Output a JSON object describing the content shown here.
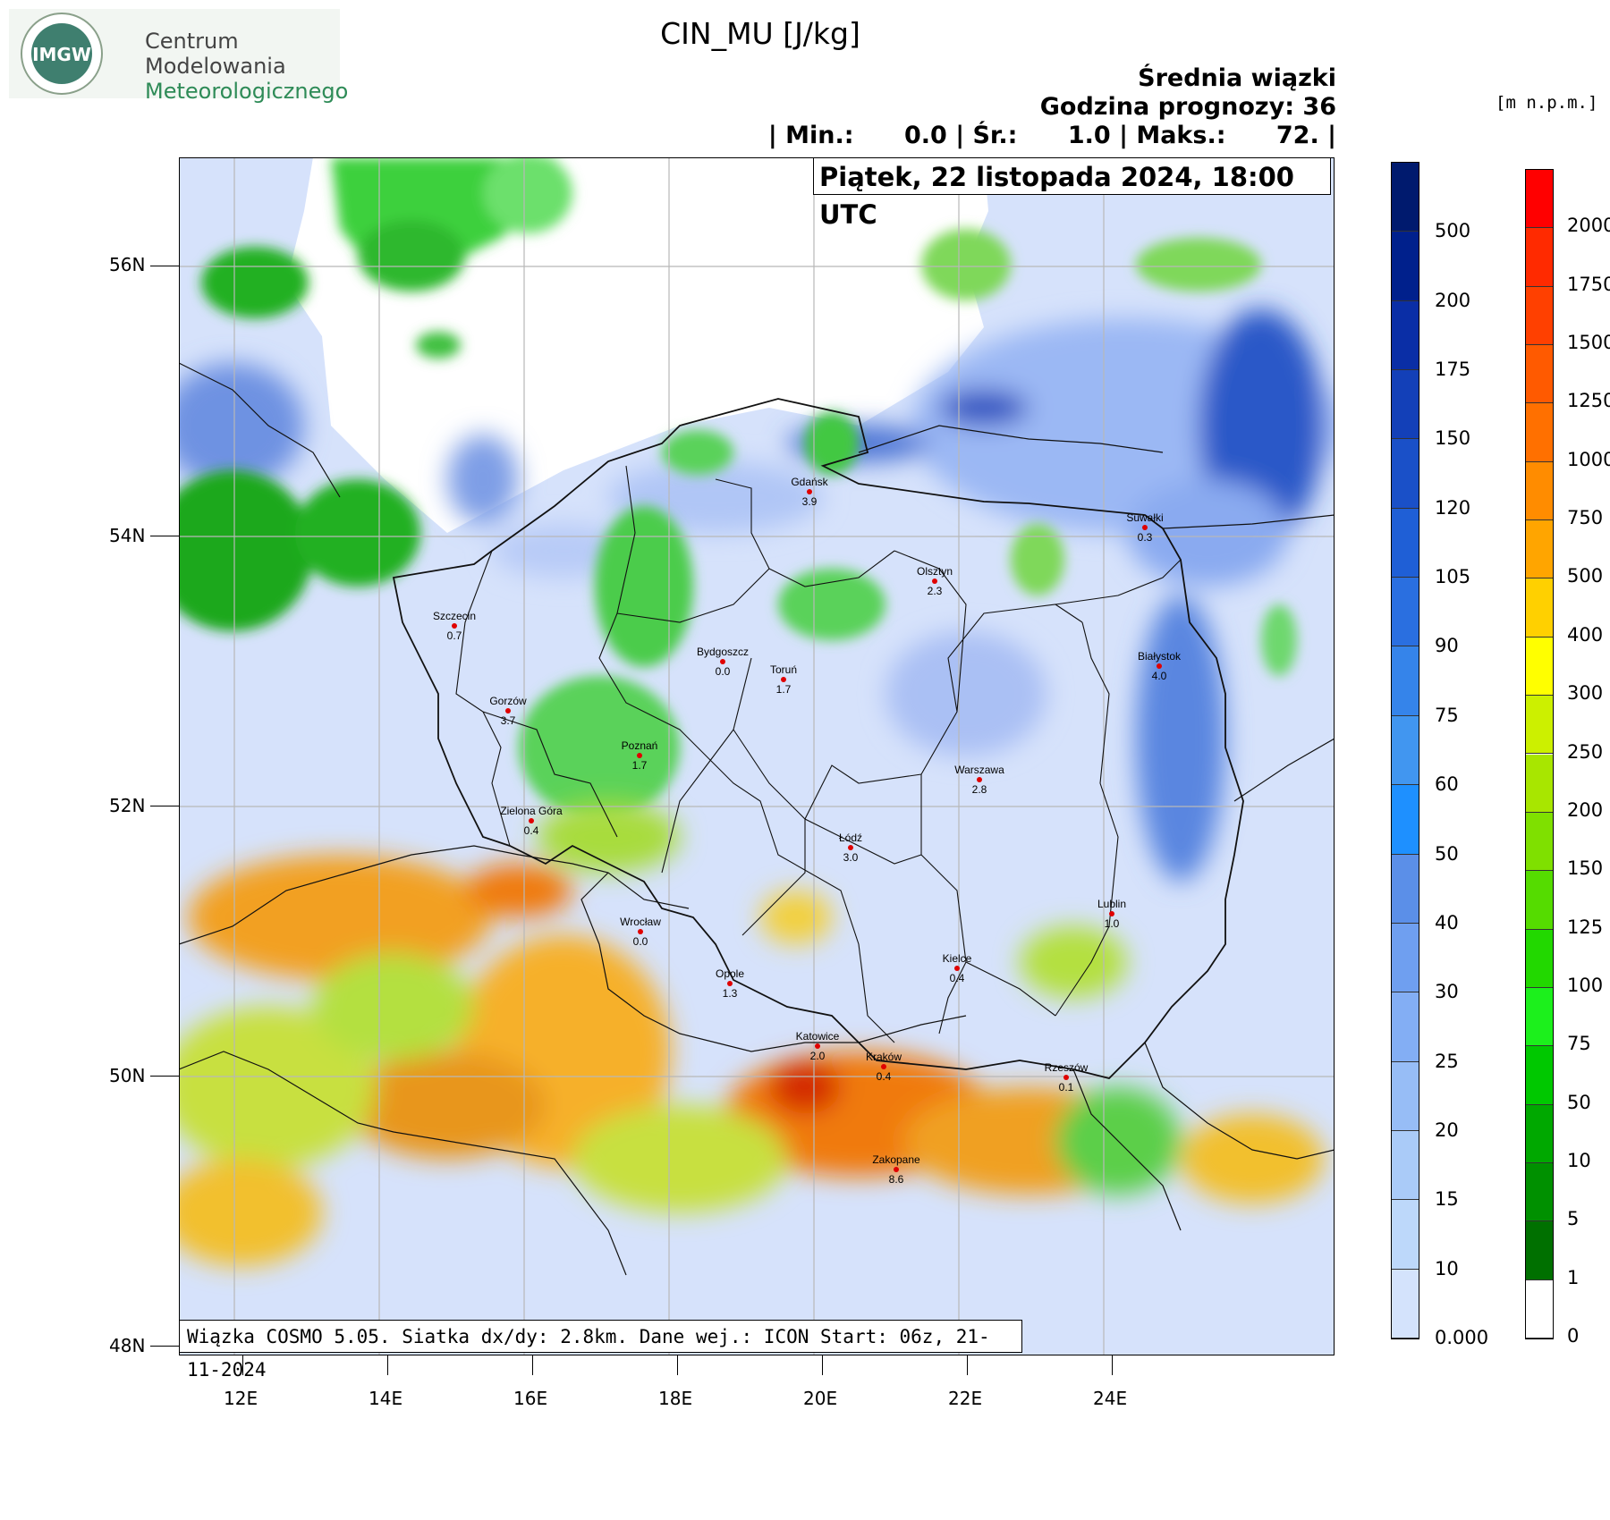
{
  "logo": {
    "badge": "IMGW",
    "line1": "Centrum",
    "line2": "Modelowania",
    "line3": "Meteorologicznego"
  },
  "title": "CIN_MU [J/kg]",
  "header": {
    "line1": "Średnia wiązki",
    "line2": "Godzina prognozy: 36",
    "line3": "| Min.:      0.0 | Śr.:      1.0 | Maks.:      72. |"
  },
  "date": "Piątek, 22 listopada 2024, 18:00 UTC",
  "footer": "Wiązka COSMO 5.05. Siatka dx/dy: 2.8km. Dane wej.: ICON Start: 06z, 21-11-2024",
  "unit_label": "[m n.p.m.]",
  "axes": {
    "lat_labels": [
      "56N",
      "54N",
      "52N",
      "50N",
      "48N"
    ],
    "lon_labels": [
      "12E",
      "14E",
      "16E",
      "18E",
      "20E",
      "22E",
      "24E"
    ]
  },
  "colorbar_cin": {
    "labels": [
      "500",
      "200",
      "175",
      "150",
      "120",
      "105",
      "90",
      "75",
      "60",
      "50",
      "40",
      "30",
      "25",
      "20",
      "15",
      "10",
      "0.000"
    ],
    "colors": [
      "#001a6e",
      "#00208c",
      "#0a2ea6",
      "#1340b8",
      "#1a50c8",
      "#1f5fd6",
      "#2a6fe0",
      "#3584ea",
      "#4196f0",
      "#1e90ff",
      "#5b8fe8",
      "#6f9ff0",
      "#83aef4",
      "#97bdf6",
      "#aacbf8",
      "#bdd8fa",
      "#d4e3fc"
    ]
  },
  "colorbar_elev": {
    "labels": [
      "2000",
      "1750",
      "1500",
      "1250",
      "1000",
      "750",
      "500",
      "400",
      "300",
      "250",
      "200",
      "150",
      "125",
      "100",
      "75",
      "50",
      "10",
      "5",
      "1",
      "0"
    ],
    "colors": [
      "#ff0000",
      "#ff2a00",
      "#ff4000",
      "#ff5a00",
      "#ff7000",
      "#ff8c00",
      "#ffa500",
      "#ffd000",
      "#ffff00",
      "#ccf000",
      "#a8e600",
      "#7fe000",
      "#55dc00",
      "#22d800",
      "#1cf01c",
      "#00c800",
      "#00a800",
      "#009000",
      "#007000",
      "#ffffff"
    ]
  },
  "cities": [
    {
      "name": "Gdańsk",
      "value": "3.9"
    },
    {
      "name": "Suwałki",
      "value": "0.3"
    },
    {
      "name": "Olsztyn",
      "value": "2.3"
    },
    {
      "name": "Szczecin",
      "value": "0.7"
    },
    {
      "name": "Bydgoszcz",
      "value": "0.0"
    },
    {
      "name": "Toruń",
      "value": "1.7"
    },
    {
      "name": "Białystok",
      "value": "4.0"
    },
    {
      "name": "Gorzów",
      "value": "3.7"
    },
    {
      "name": "Poznań",
      "value": "1.7"
    },
    {
      "name": "Warszawa",
      "value": "2.8"
    },
    {
      "name": "Zielona Góra",
      "value": "0.4"
    },
    {
      "name": "Łódź",
      "value": "3.0"
    },
    {
      "name": "Lublin",
      "value": "1.0"
    },
    {
      "name": "Wrocław",
      "value": "0.0"
    },
    {
      "name": "Kielce",
      "value": "0.4"
    },
    {
      "name": "Opole",
      "value": "1.3"
    },
    {
      "name": "Katowice",
      "value": "2.0"
    },
    {
      "name": "Kraków",
      "value": "0.4"
    },
    {
      "name": "Rzeszów",
      "value": "0.1"
    },
    {
      "name": "Zakopane",
      "value": "8.6"
    }
  ]
}
